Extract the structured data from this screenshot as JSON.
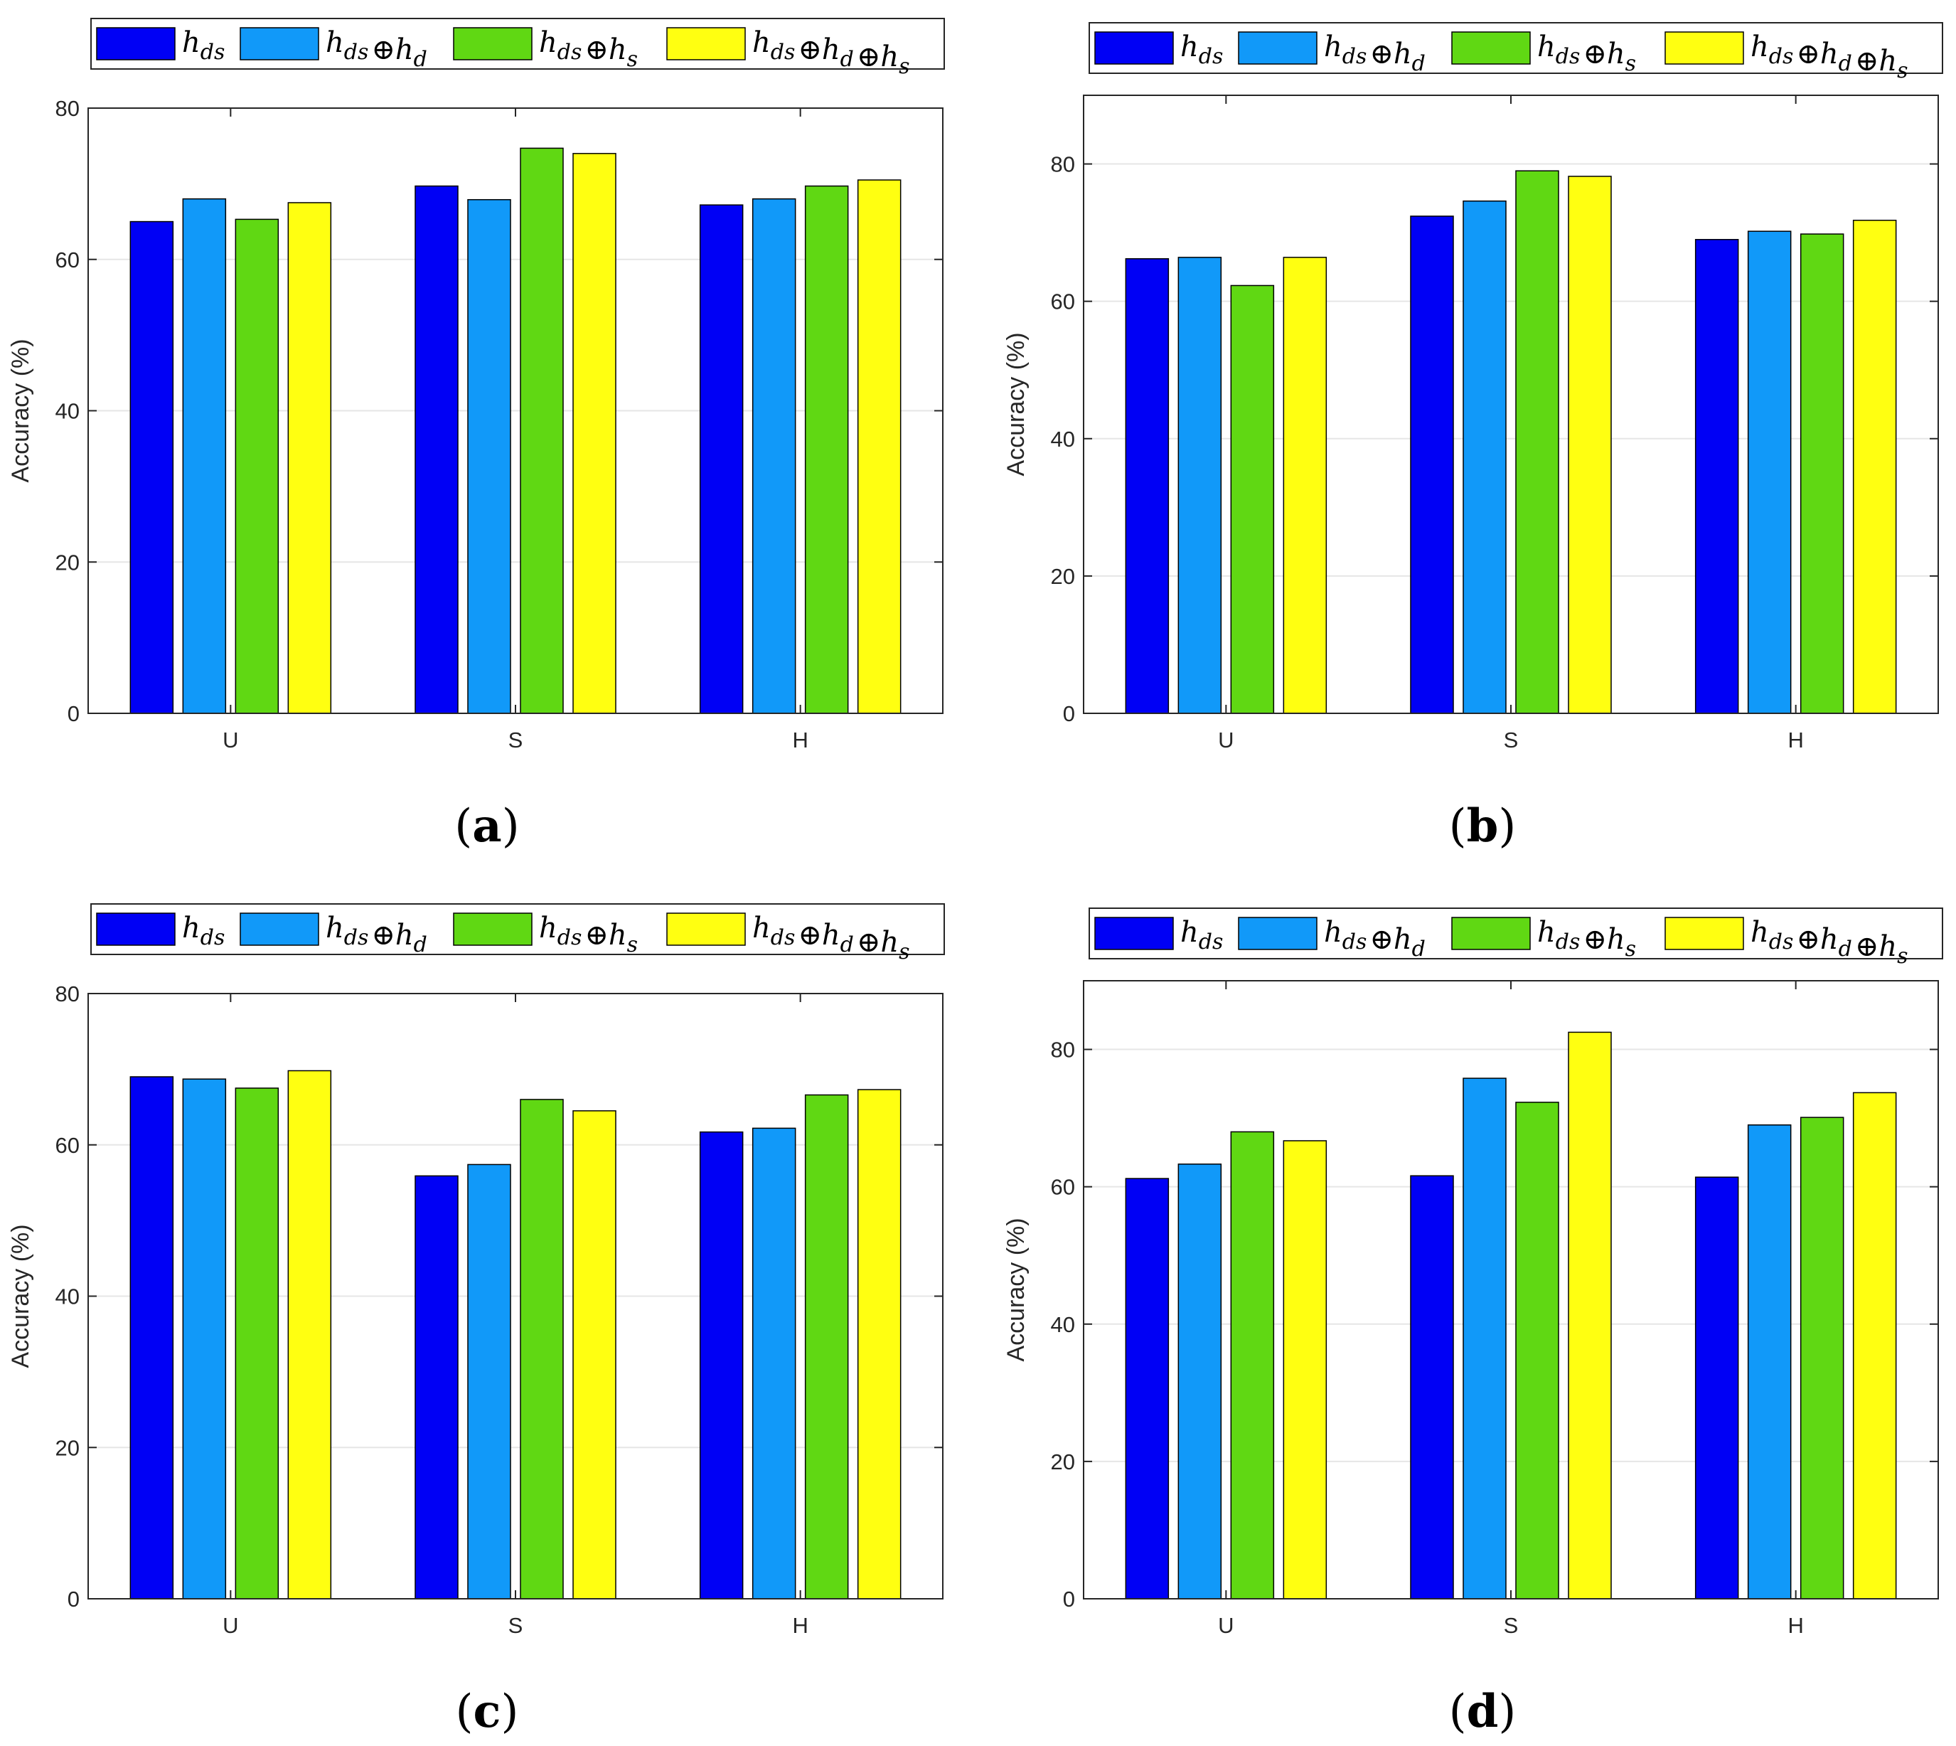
{
  "figure": {
    "colors": {
      "series": [
        "#0000f5",
        "#1199f9",
        "#60d813",
        "#ffff11"
      ],
      "grid": "#e6e6e6",
      "axis": "#262626"
    }
  },
  "chart_data": [
    {
      "type": "bar",
      "panel_label": "a",
      "ylabel": "Accuracy (%)",
      "categories": [
        "U",
        "S",
        "H"
      ],
      "ylim": [
        0,
        80
      ],
      "yticks": [
        0,
        20,
        40,
        60,
        80
      ],
      "grid": true,
      "legend_position": "top",
      "series": [
        {
          "name": "h_ds",
          "values": [
            65.0,
            69.7,
            67.2
          ]
        },
        {
          "name": "h_ds ⊕ h_d",
          "values": [
            68.0,
            67.9,
            68.0
          ]
        },
        {
          "name": "h_ds ⊕ h_s",
          "values": [
            65.3,
            74.7,
            69.7
          ]
        },
        {
          "name": "h_ds ⊕ h_d ⊕ h_s",
          "values": [
            67.5,
            74.0,
            70.5
          ]
        }
      ]
    },
    {
      "type": "bar",
      "panel_label": "b",
      "ylabel": "Accuracy (%)",
      "categories": [
        "U",
        "S",
        "H"
      ],
      "ylim": [
        0,
        90
      ],
      "yticks": [
        0,
        20,
        40,
        60,
        80
      ],
      "grid": true,
      "legend_position": "top",
      "series": [
        {
          "name": "h_ds",
          "values": [
            66.2,
            72.4,
            69.0
          ]
        },
        {
          "name": "h_ds ⊕ h_d",
          "values": [
            66.4,
            74.6,
            70.2
          ]
        },
        {
          "name": "h_ds ⊕ h_s",
          "values": [
            62.3,
            79.0,
            69.8
          ]
        },
        {
          "name": "h_ds ⊕ h_d ⊕ h_s",
          "values": [
            66.4,
            78.2,
            71.8
          ]
        }
      ]
    },
    {
      "type": "bar",
      "panel_label": "c",
      "ylabel": "Accuracy (%)",
      "categories": [
        "U",
        "S",
        "H"
      ],
      "ylim": [
        0,
        80
      ],
      "yticks": [
        0,
        20,
        40,
        60,
        80
      ],
      "grid": true,
      "legend_position": "top",
      "series": [
        {
          "name": "h_ds",
          "values": [
            69.0,
            55.9,
            61.7
          ]
        },
        {
          "name": "h_ds ⊕ h_d",
          "values": [
            68.7,
            57.4,
            62.2
          ]
        },
        {
          "name": "h_ds ⊕ h_s",
          "values": [
            67.5,
            66.0,
            66.6
          ]
        },
        {
          "name": "h_ds ⊕ h_d ⊕ h_s",
          "values": [
            69.8,
            64.5,
            67.3
          ]
        }
      ]
    },
    {
      "type": "bar",
      "panel_label": "d",
      "ylabel": "Accuracy (%)",
      "categories": [
        "U",
        "S",
        "H"
      ],
      "ylim": [
        0,
        90
      ],
      "yticks": [
        0,
        20,
        40,
        60,
        80
      ],
      "grid": true,
      "legend_position": "top",
      "series": [
        {
          "name": "h_ds",
          "values": [
            61.2,
            61.6,
            61.4
          ]
        },
        {
          "name": "h_ds ⊕ h_d",
          "values": [
            63.3,
            75.8,
            69.0
          ]
        },
        {
          "name": "h_ds ⊕ h_s",
          "values": [
            68.0,
            72.3,
            70.1
          ]
        },
        {
          "name": "h_ds ⊕ h_d ⊕ h_s",
          "values": [
            66.7,
            82.5,
            73.7
          ]
        }
      ]
    }
  ]
}
